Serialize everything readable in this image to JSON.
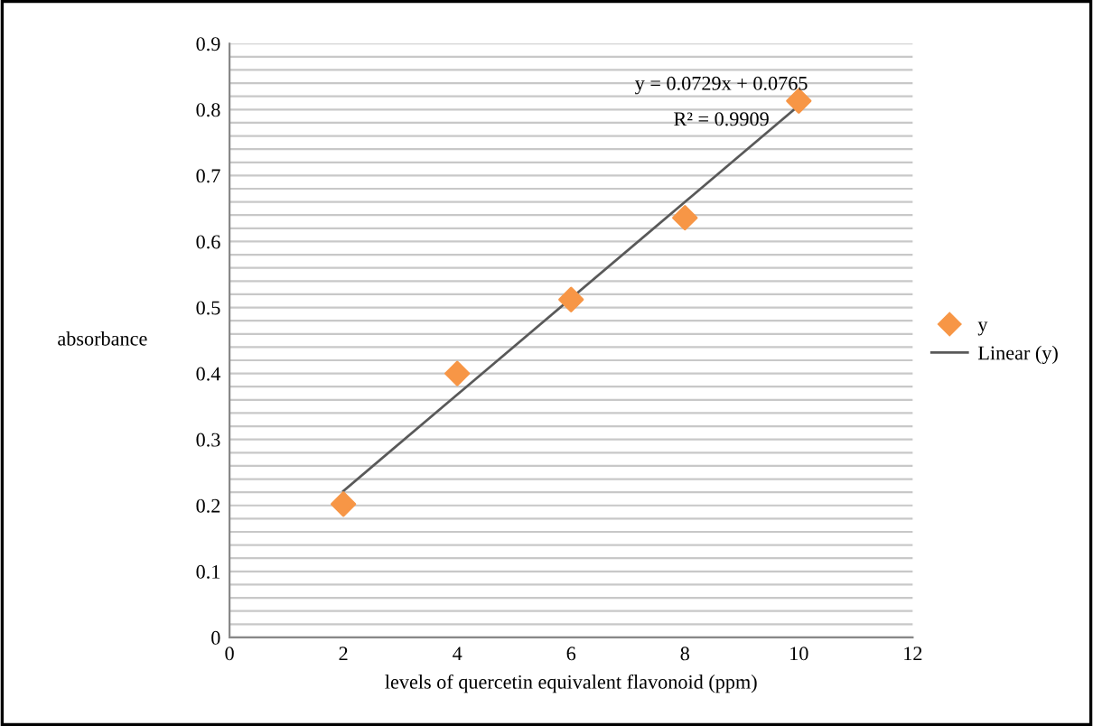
{
  "chart_data": {
    "type": "scatter",
    "xlabel": "levels of quercetin equivalent flavonoid (ppm)",
    "ylabel": "absorbance",
    "x": [
      2,
      4,
      6,
      8,
      10
    ],
    "series": [
      {
        "name": "y",
        "color": "#f79646",
        "marker": "diamond",
        "values": [
          0.202,
          0.4,
          0.512,
          0.636,
          0.813
        ]
      },
      {
        "name": "Linear (y)",
        "type": "line",
        "color": "#595959",
        "marker": "none",
        "x": [
          2,
          10
        ],
        "values": [
          0.222,
          0.806
        ]
      }
    ],
    "annotations": [
      "y = 0.0729x + 0.0765",
      "R² = 0.9909"
    ],
    "xlim": [
      0,
      12
    ],
    "xticks": [
      0,
      2,
      4,
      6,
      8,
      10,
      12
    ],
    "ylim": [
      0,
      0.9
    ],
    "yticks": [
      0,
      {
        "value": 0.02,
        "label": null
      },
      {
        "value": 0.04,
        "label": null
      },
      {
        "value": 0.06,
        "label": null
      },
      {
        "value": 0.08,
        "label": null
      },
      {
        "value": 0.1,
        "label": "0.1"
      },
      {
        "value": 0.12,
        "label": null
      },
      {
        "value": 0.14,
        "label": null
      },
      {
        "value": 0.16,
        "label": null
      },
      {
        "value": 0.18,
        "label": null
      },
      {
        "value": 0.2,
        "label": "0.2"
      },
      {
        "value": 0.22,
        "label": null
      },
      {
        "value": 0.24,
        "label": null
      },
      {
        "value": 0.26,
        "label": null
      },
      {
        "value": 0.28,
        "label": null
      },
      {
        "value": 0.3,
        "label": "0.3"
      },
      {
        "value": 0.32,
        "label": null
      },
      {
        "value": 0.34,
        "label": null
      },
      {
        "value": 0.36,
        "label": null
      },
      {
        "value": 0.38,
        "label": null
      },
      {
        "value": 0.4,
        "label": "0.4"
      },
      {
        "value": 0.42,
        "label": null
      },
      {
        "value": 0.44,
        "label": null
      },
      {
        "value": 0.46,
        "label": null
      },
      {
        "value": 0.48,
        "label": null
      },
      {
        "value": 0.5,
        "label": "0.5"
      },
      {
        "value": 0.52,
        "label": null
      },
      {
        "value": 0.54,
        "label": null
      },
      {
        "value": 0.56,
        "label": null
      },
      {
        "value": 0.58,
        "label": null
      },
      {
        "value": 0.6,
        "label": "0.6"
      },
      {
        "value": 0.62,
        "label": null
      },
      {
        "value": 0.64,
        "label": null
      },
      {
        "value": 0.66,
        "label": null
      },
      {
        "value": 0.68,
        "label": null
      },
      {
        "value": 0.7,
        "label": "0.7"
      },
      {
        "value": 0.72,
        "label": null
      },
      {
        "value": 0.74,
        "label": null
      },
      {
        "value": 0.76,
        "label": null
      },
      {
        "value": 0.78,
        "label": null
      },
      {
        "value": 0.8,
        "label": "0.8"
      },
      {
        "value": 0.82,
        "label": null
      },
      {
        "value": 0.84,
        "label": null
      },
      {
        "value": 0.86,
        "label": null
      },
      {
        "value": 0.88,
        "label": null
      },
      {
        "value": 0.9,
        "label": "0.9"
      }
    ],
    "grid": "y",
    "legend": "right"
  }
}
